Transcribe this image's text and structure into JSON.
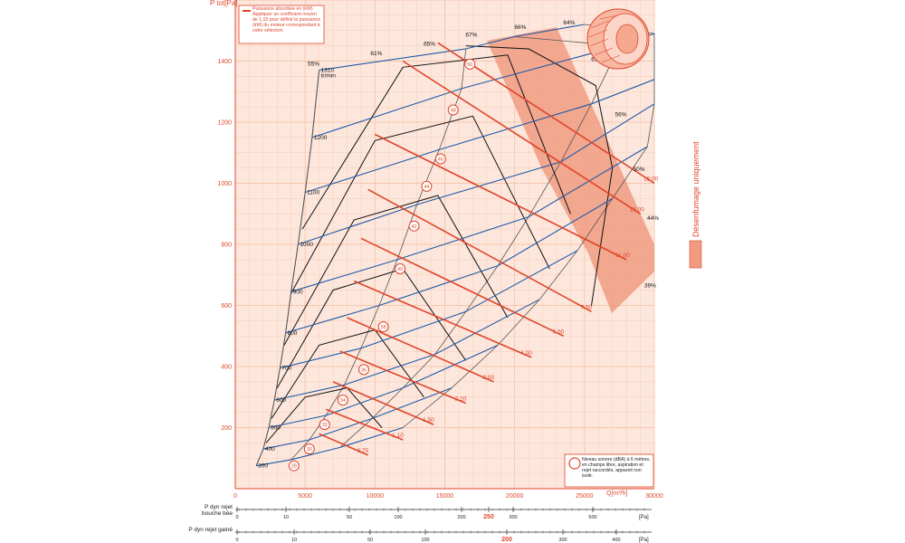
{
  "chart_data": {
    "type": "line",
    "title": "",
    "xlabel": "Q[m³/h]",
    "ylabel": "P tot[Pa]",
    "xlim": [
      0,
      30000
    ],
    "ylim": [
      0,
      1600
    ],
    "x_ticks": [
      "0",
      "5000",
      "10000",
      "15000",
      "20000",
      "25000",
      "30000"
    ],
    "y_ticks": [
      "200",
      "400",
      "600",
      "800",
      "1000",
      "1200",
      "1400"
    ],
    "grid": true,
    "legend": {
      "power_line": "Puissance absorbée en (kW) Appliquer un coefficient moyen de 1.15 pour définir la puissance (kW) du moteur correspondant à votre sélection",
      "noise_circle": "Niveau sonore (dBA) à 6 mètres, en champs libre, aspiration et rejet raccordés, appareil non isolé."
    },
    "side_label": "Désenfumage uniquement",
    "system_curve_line_label": "tr/min",
    "speed_curves": [
      {
        "label": "300",
        "points": [
          [
            1500,
            75
          ],
          [
            4000,
            95
          ],
          [
            7500,
            135
          ],
          [
            12000,
            200
          ]
        ]
      },
      {
        "label": "400",
        "points": [
          [
            2000,
            130
          ],
          [
            5300,
            160
          ],
          [
            9800,
            230
          ],
          [
            15500,
            330
          ]
        ]
      },
      {
        "label": "500",
        "points": [
          [
            2400,
            200
          ],
          [
            6500,
            240
          ],
          [
            12000,
            330
          ],
          [
            18800,
            470
          ]
        ]
      },
      {
        "label": "600",
        "points": [
          [
            2800,
            290
          ],
          [
            7800,
            340
          ],
          [
            14300,
            440
          ],
          [
            21800,
            620
          ]
        ]
      },
      {
        "label": "700",
        "points": [
          [
            3200,
            395
          ],
          [
            9000,
            460
          ],
          [
            16500,
            580
          ],
          [
            24500,
            780
          ]
        ]
      },
      {
        "label": "800",
        "points": [
          [
            3600,
            510
          ],
          [
            10300,
            600
          ],
          [
            18800,
            730
          ],
          [
            27000,
            950
          ]
        ]
      },
      {
        "label": "900",
        "points": [
          [
            4000,
            645
          ],
          [
            11600,
            750
          ],
          [
            21000,
            890
          ],
          [
            29500,
            1120
          ]
        ]
      },
      {
        "label": "1000",
        "points": [
          [
            4500,
            800
          ],
          [
            13000,
            930
          ],
          [
            23300,
            1070
          ],
          [
            30000,
            1260
          ]
        ]
      },
      {
        "label": "1100",
        "points": [
          [
            5000,
            970
          ],
          [
            14600,
            1110
          ],
          [
            25500,
            1260
          ],
          [
            30000,
            1340
          ]
        ]
      },
      {
        "label": "1200",
        "points": [
          [
            5500,
            1150
          ],
          [
            16200,
            1310
          ],
          [
            27500,
            1450
          ],
          [
            30000,
            1490
          ]
        ]
      },
      {
        "label": "1310",
        "points": [
          [
            6000,
            1370
          ],
          [
            16500,
            1440
          ],
          [
            20000,
            1480
          ],
          [
            25000,
            1520
          ]
        ]
      }
    ],
    "efficiency_labels": [
      "55%",
      "61%",
      "65%",
      "67%",
      "66%",
      "64%",
      "61%",
      "56%",
      "50%",
      "44%",
      "39%"
    ],
    "power_lines": [
      {
        "label": "0.75",
        "points": [
          [
            6000,
            180
          ],
          [
            9500,
            110
          ]
        ]
      },
      {
        "label": "1.10",
        "points": [
          [
            6500,
            260
          ],
          [
            12000,
            160
          ]
        ]
      },
      {
        "label": "1.50",
        "points": [
          [
            7000,
            350
          ],
          [
            14200,
            210
          ]
        ]
      },
      {
        "label": "2.20",
        "points": [
          [
            7500,
            450
          ],
          [
            16500,
            280
          ]
        ]
      },
      {
        "label": "3.00",
        "points": [
          [
            8000,
            560
          ],
          [
            18500,
            350
          ]
        ]
      },
      {
        "label": "4.00",
        "points": [
          [
            8500,
            680
          ],
          [
            21200,
            430
          ]
        ]
      },
      {
        "label": "5.50",
        "points": [
          [
            9000,
            820
          ],
          [
            23500,
            500
          ]
        ]
      },
      {
        "label": "7.50",
        "points": [
          [
            9500,
            980
          ],
          [
            25500,
            580
          ]
        ]
      },
      {
        "label": "11.00",
        "points": [
          [
            10000,
            1160
          ],
          [
            28000,
            750
          ]
        ]
      },
      {
        "label": "15.00",
        "points": [
          [
            12000,
            1400
          ],
          [
            29000,
            900
          ]
        ]
      },
      {
        "label": "18.00",
        "points": [
          [
            14500,
            1460
          ],
          [
            30000,
            1000
          ]
        ]
      }
    ],
    "noise_levels": [
      "28",
      "30",
      "32",
      "34",
      "36",
      "38",
      "40",
      "42",
      "44",
      "46",
      "48",
      "50",
      "52",
      "54",
      "56",
      "58"
    ],
    "scale_dyn_bouche": {
      "label": "P dyn rejet bouche bée",
      "unit": "[Pa]",
      "ticks": [
        "0",
        "10",
        "50",
        "100",
        "200",
        "250",
        "300",
        "500"
      ],
      "highlight": "250"
    },
    "scale_dyn_gaine": {
      "label": "P dyn rejet gainé",
      "unit": "[Pa]",
      "ticks": [
        "0",
        "10",
        "50",
        "100",
        "200",
        "300",
        "400"
      ],
      "highlight": "200"
    },
    "colors": {
      "background": "#fde7dc",
      "grid": "#f6c5ae",
      "speed": "#1f5aa8",
      "efficiency": "#111111",
      "power": "#e0452a",
      "accent": "#e8603b",
      "smoke_zone": "#f09b81",
      "axis_text": "#e0452a"
    }
  }
}
